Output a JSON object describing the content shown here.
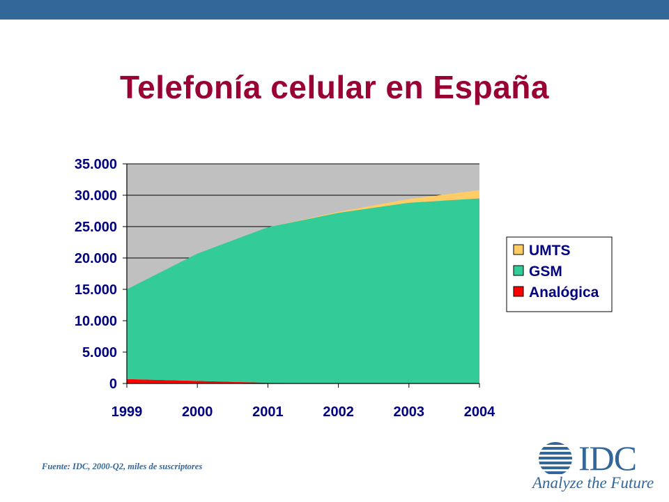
{
  "slide": {
    "title": "Telefonía celular en España",
    "source": "Fuente: IDC, 2000-Q2, miles de suscriptores"
  },
  "logo": {
    "wordmark": "IDC",
    "tagline": "Analyze the Future"
  },
  "colors": {
    "top_bar": "#336699",
    "title": "#990033",
    "plot_bg": "#C0C0C0",
    "analogica": "#FF0000",
    "gsm": "#33CC99",
    "umts": "#FFCC66",
    "axis_text": "#000080"
  },
  "chart_data": {
    "type": "area",
    "stacked": true,
    "title": "",
    "xlabel": "",
    "ylabel": "",
    "x": [
      "1999",
      "2000",
      "2001",
      "2002",
      "2003",
      "2004"
    ],
    "y_ticks": [
      "0",
      "5.000",
      "10.000",
      "15.000",
      "20.000",
      "25.000",
      "30.000",
      "35.000"
    ],
    "ylim": [
      0,
      35000
    ],
    "grid": "horizontal",
    "legend_position": "right",
    "series": [
      {
        "name": "Analógica",
        "values": [
          700,
          400,
          100,
          0,
          0,
          0
        ]
      },
      {
        "name": "GSM",
        "values": [
          14300,
          20300,
          24800,
          27200,
          28800,
          29500
        ]
      },
      {
        "name": "UMTS",
        "values": [
          0,
          0,
          0,
          150,
          600,
          1300
        ]
      }
    ],
    "legend_order": [
      "UMTS",
      "GSM",
      "Analógica"
    ]
  }
}
